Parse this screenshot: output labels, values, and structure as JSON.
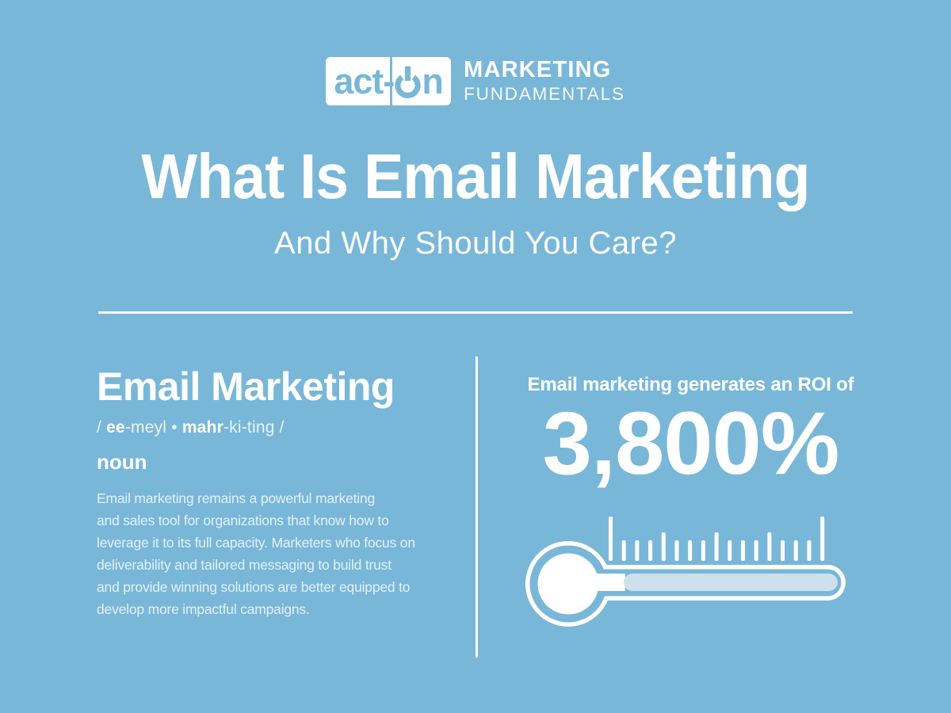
{
  "colors": {
    "background": "#79b7d9",
    "text_white": "#ffffff",
    "tube_fill": "#cfe0ed",
    "logo_text_blue": "#79b7d9"
  },
  "header": {
    "logo": {
      "part1": "act-",
      "part2": "n",
      "power_icon": "power-button-symbol"
    },
    "brand_line1": "MARKETING",
    "brand_line2": "FUNDAMENTALS"
  },
  "hero": {
    "title": "What Is Email Marketing",
    "subtitle": "And Why Should You Care?"
  },
  "definition": {
    "term": "Email Marketing",
    "pronunciation": {
      "open": "/ ",
      "bold1": "ee",
      "reg1": "-meyl",
      "separator": " • ",
      "bold2": "mahr",
      "reg2": "-ki-ting",
      "close": " /"
    },
    "part_of_speech": "noun",
    "body": "Email marketing remains a powerful marketing\nand sales tool for organizations that know how to\nleverage it to its full capacity. Marketers who focus on\ndeliverability and tailored messaging to build trust\nand provide winning solutions are better equipped to\ndevelop more impactful campaigns."
  },
  "stat": {
    "lead": "Email marketing generates an ROI of",
    "value": "3,800%"
  },
  "thermometer": {
    "icon": "thermometer-gauge",
    "ticks": [
      "tall",
      "short",
      "short",
      "short",
      "medium",
      "short",
      "short",
      "short",
      "medium",
      "short",
      "short",
      "short",
      "medium",
      "short",
      "short",
      "short",
      "tall"
    ],
    "tick_heights": {
      "tall": 56,
      "medium": 36,
      "short": 26
    }
  }
}
